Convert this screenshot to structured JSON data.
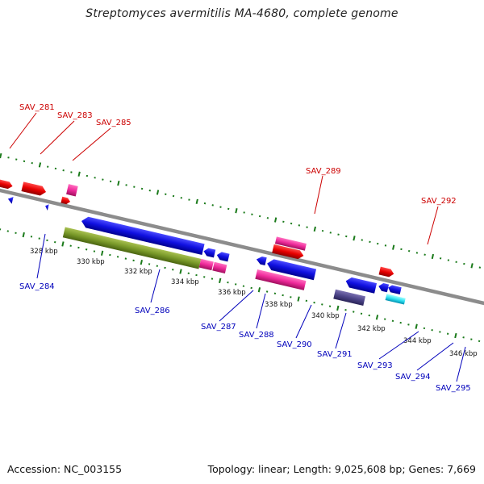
{
  "title": "Streptomyces avermitilis MA-4680, complete genome",
  "footer": {
    "accession": "Accession: NC_003155",
    "summary": "Topology: linear; Length: 9,025,608 bp; Genes: 7,669"
  },
  "colors": {
    "forward_label": "#cc0000",
    "reverse_label": "#0000bb",
    "backbone": "#8c8c8c",
    "tick": "#1a7a1a"
  },
  "tick_labels": [
    "328 kbp",
    "330 kbp",
    "332 kbp",
    "334 kbp",
    "336 kbp",
    "338 kbp",
    "340 kbp",
    "342 kbp",
    "344 kbp",
    "346 kbp"
  ],
  "forward_gene_labels": [
    "SAV_281",
    "SAV_283",
    "SAV_285",
    "SAV_289",
    "SAV_292"
  ],
  "reverse_gene_labels": [
    "SAV_284",
    "SAV_286",
    "SAV_287",
    "SAV_288",
    "SAV_290",
    "SAV_291",
    "SAV_293",
    "SAV_294",
    "SAV_295"
  ]
}
